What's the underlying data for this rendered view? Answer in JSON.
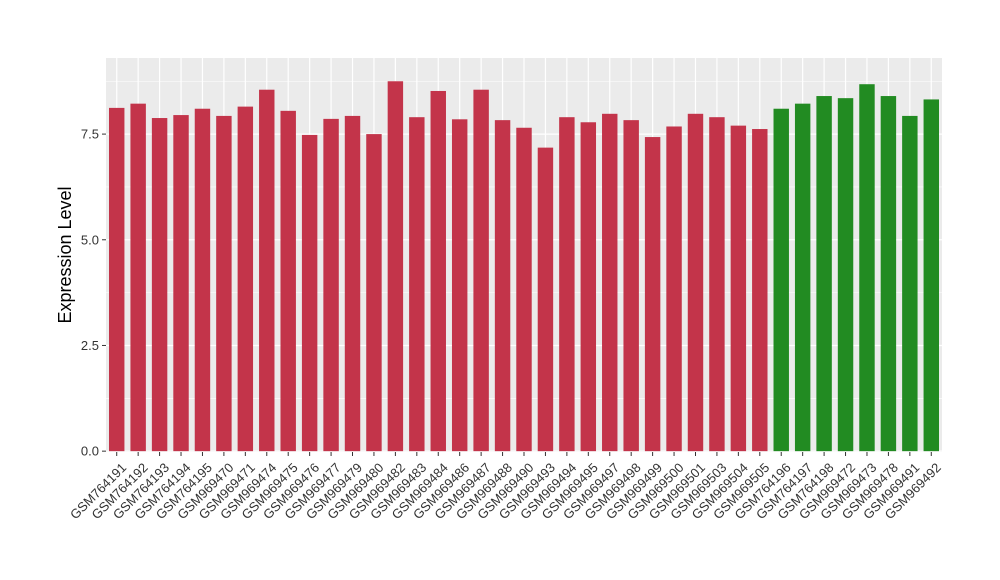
{
  "chart_data": {
    "type": "bar",
    "ylabel": "Expression Level",
    "xlabel": "",
    "ylim": [
      -0.02,
      9.3
    ],
    "yticks": [
      0.0,
      2.5,
      5.0,
      7.5
    ],
    "ytick_labels": [
      "0.0",
      "2.5",
      "5.0",
      "7.5"
    ],
    "grid": true,
    "legend": "none",
    "colors": {
      "red": "#C3344A",
      "green": "#228B22",
      "panel": "#EBEBEB",
      "grid": "#FFFFFF"
    },
    "categories": [
      "GSM764191",
      "GSM764192",
      "GSM764193",
      "GSM764194",
      "GSM764195",
      "GSM969470",
      "GSM969471",
      "GSM969474",
      "GSM969475",
      "GSM969476",
      "GSM969477",
      "GSM969479",
      "GSM969480",
      "GSM969482",
      "GSM969483",
      "GSM969484",
      "GSM969486",
      "GSM969487",
      "GSM969488",
      "GSM969490",
      "GSM969493",
      "GSM969494",
      "GSM969495",
      "GSM969497",
      "GSM969498",
      "GSM969499",
      "GSM969500",
      "GSM969501",
      "GSM969503",
      "GSM969504",
      "GSM969505",
      "GSM764196",
      "GSM764197",
      "GSM764198",
      "GSM969472",
      "GSM969473",
      "GSM969478",
      "GSM969491",
      "GSM969492"
    ],
    "values": [
      8.12,
      8.22,
      7.88,
      7.95,
      8.1,
      7.93,
      8.15,
      8.55,
      8.05,
      7.48,
      7.86,
      7.93,
      7.5,
      8.75,
      7.9,
      8.52,
      7.85,
      8.55,
      7.83,
      7.65,
      7.18,
      7.9,
      7.78,
      7.98,
      7.83,
      7.43,
      7.68,
      7.98,
      7.9,
      7.7,
      7.62,
      8.1,
      8.22,
      8.4,
      8.35,
      8.68,
      8.4,
      7.93,
      8.32
    ],
    "bar_colors": [
      "red",
      "red",
      "red",
      "red",
      "red",
      "red",
      "red",
      "red",
      "red",
      "red",
      "red",
      "red",
      "red",
      "red",
      "red",
      "red",
      "red",
      "red",
      "red",
      "red",
      "red",
      "red",
      "red",
      "red",
      "red",
      "red",
      "red",
      "red",
      "red",
      "red",
      "red",
      "green",
      "green",
      "green",
      "green",
      "green",
      "green",
      "green",
      "green"
    ]
  }
}
